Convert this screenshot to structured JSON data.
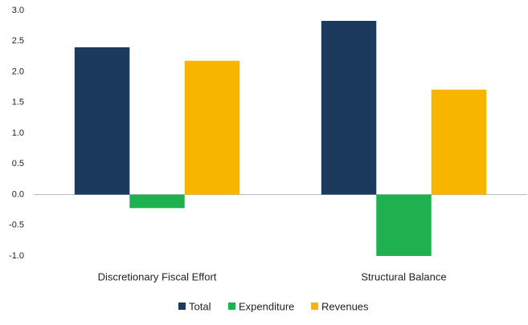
{
  "chart_data": {
    "type": "bar",
    "categories": [
      "Discretionary Fiscal Effort",
      "Structural Balance"
    ],
    "series": [
      {
        "name": "Total",
        "color": "#1b3a5e",
        "values": [
          2.4,
          2.83
        ]
      },
      {
        "name": "Expenditure",
        "color": "#1fb14f",
        "values": [
          -0.22,
          -1.0
        ]
      },
      {
        "name": "Revenues",
        "color": "#f7b500",
        "values": [
          2.18,
          1.71
        ]
      }
    ],
    "ylim": [
      -1.0,
      3.0
    ],
    "yticks": [
      {
        "value": -1.0,
        "label": "-1.0"
      },
      {
        "value": -0.5,
        "label": "-0.5"
      },
      {
        "value": 0,
        "label": "0.0"
      },
      {
        "value": 0.5,
        "label": "0.5"
      },
      {
        "value": 1.0,
        "label": "1.0"
      },
      {
        "value": 1.5,
        "label": "1.5"
      },
      {
        "value": 2.0,
        "label": "2.0"
      },
      {
        "value": 2.5,
        "label": "2.5"
      },
      {
        "value": 3.0,
        "label": "3.0"
      }
    ],
    "grid": false,
    "legend": "bottom"
  }
}
